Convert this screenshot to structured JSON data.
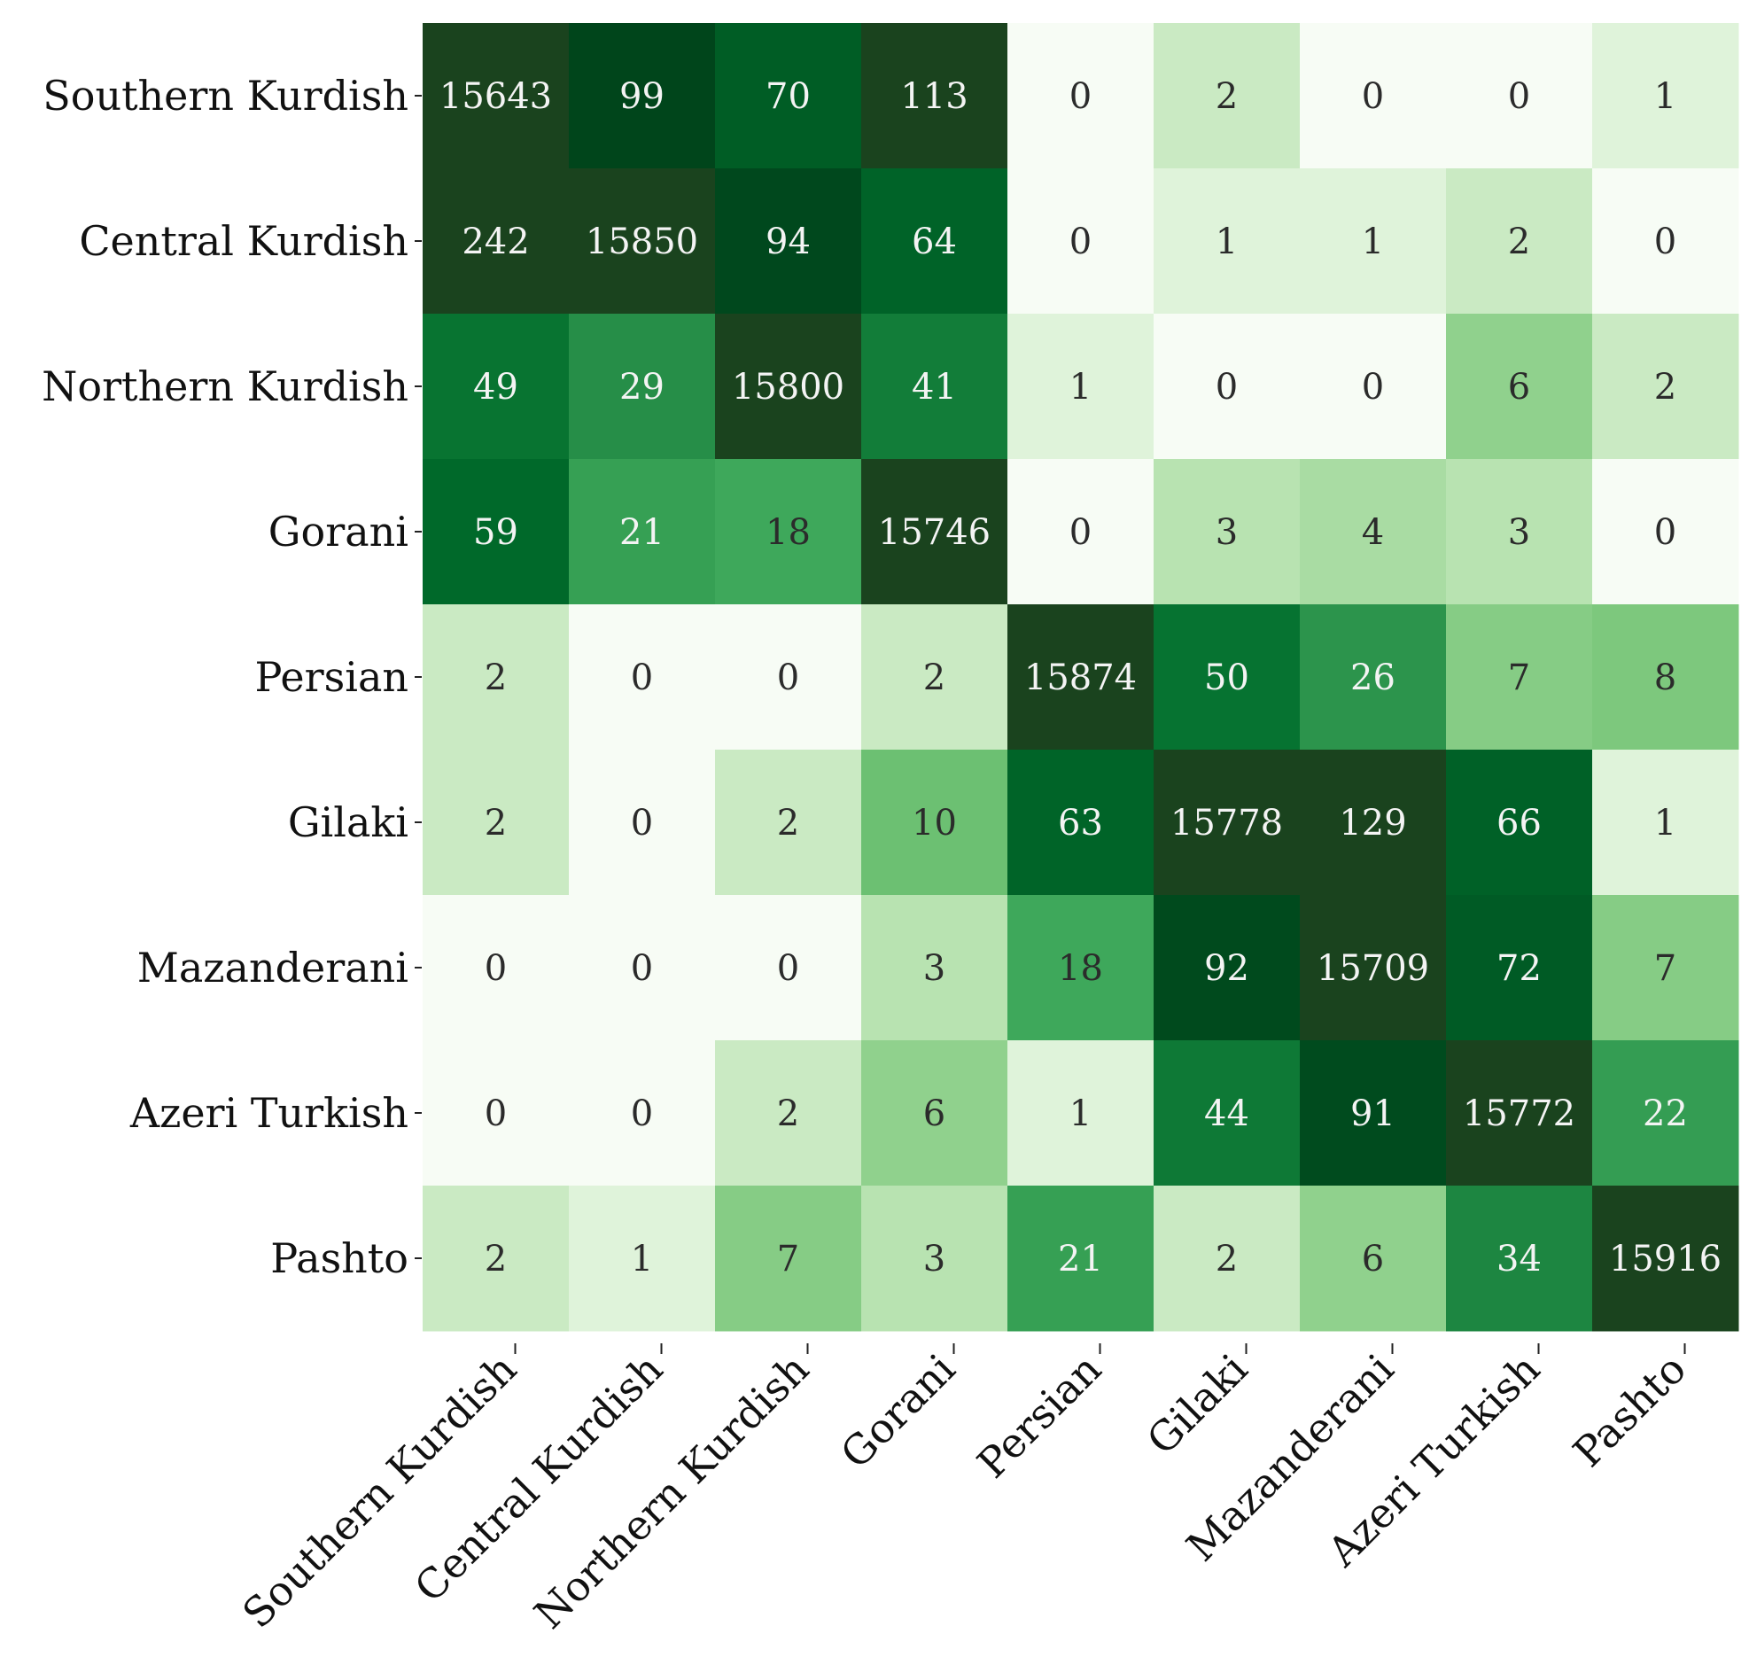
{
  "chart_data": {
    "type": "heatmap",
    "title": "",
    "xlabel": "",
    "ylabel": "",
    "y_categories": [
      "Southern Kurdish",
      "Central Kurdish",
      "Northern Kurdish",
      "Gorani",
      "Persian",
      "Gilaki",
      "Mazanderani",
      "Azeri Turkish",
      "Pashto"
    ],
    "x_categories": [
      "Southern Kurdish",
      "Central Kurdish",
      "Northern Kurdish",
      "Gorani",
      "Persian",
      "Gilaki",
      "Mazanderani",
      "Azeri Turkish",
      "Pashto"
    ],
    "values": [
      [
        15643,
        99,
        70,
        113,
        0,
        2,
        0,
        0,
        1
      ],
      [
        242,
        15850,
        94,
        64,
        0,
        1,
        1,
        2,
        0
      ],
      [
        49,
        29,
        15800,
        41,
        1,
        0,
        0,
        6,
        2
      ],
      [
        59,
        21,
        18,
        15746,
        0,
        3,
        4,
        3,
        0
      ],
      [
        2,
        0,
        0,
        2,
        15874,
        50,
        26,
        7,
        8
      ],
      [
        2,
        0,
        2,
        10,
        63,
        15778,
        129,
        66,
        1
      ],
      [
        0,
        0,
        0,
        3,
        18,
        92,
        15709,
        72,
        7
      ],
      [
        0,
        0,
        2,
        6,
        1,
        44,
        91,
        15772,
        22
      ],
      [
        2,
        1,
        7,
        3,
        21,
        2,
        6,
        34,
        15916
      ]
    ],
    "colormap": "Greens",
    "color_scale_max": 100,
    "colorbar": false,
    "grid": false,
    "annotations": "cell values"
  }
}
